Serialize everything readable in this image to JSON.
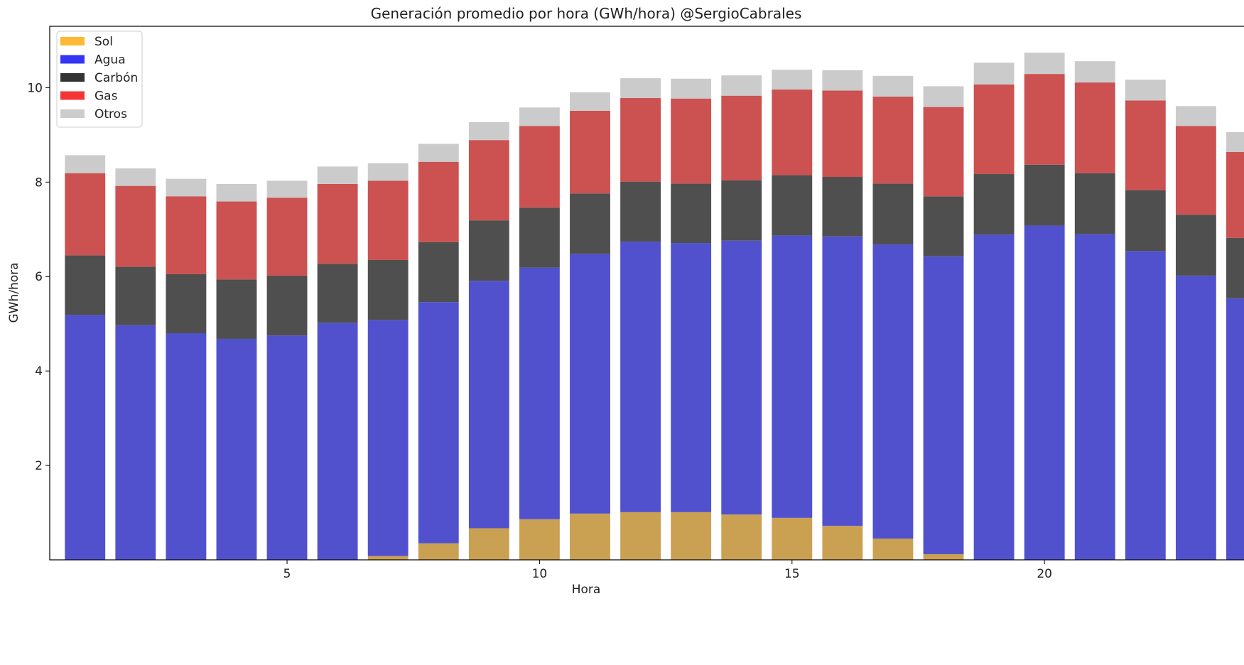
{
  "chart_data": {
    "type": "bar",
    "stacked": true,
    "title": "Generación promedio por hora (GWh/hora) @SergioCabrales",
    "xlabel": "Hora",
    "ylabel": "GWh/hora",
    "xlim": [
      0.3,
      24.5
    ],
    "ylim": [
      0,
      11.3
    ],
    "x": [
      1,
      2,
      3,
      4,
      5,
      6,
      7,
      8,
      9,
      10,
      11,
      12,
      13,
      14,
      15,
      16,
      17,
      18,
      19,
      20,
      21,
      22,
      23,
      24
    ],
    "x_ticks": [
      5,
      10,
      15,
      20
    ],
    "y_ticks": [
      2,
      4,
      6,
      8,
      10
    ],
    "grid": false,
    "legend_position": "top-left",
    "series": [
      {
        "name": "Sol",
        "legend_color": "#ffb833",
        "bar_color": "#caa052",
        "values": [
          0,
          0,
          0,
          0,
          0,
          0,
          0.08,
          0.35,
          0.67,
          0.86,
          0.98,
          1.01,
          1.01,
          0.96,
          0.89,
          0.72,
          0.45,
          0.12,
          0,
          0,
          0,
          0,
          0,
          0
        ]
      },
      {
        "name": "Agua",
        "legend_color": "#3535f5",
        "bar_color": "#5151cd",
        "values": [
          5.19,
          4.97,
          4.8,
          4.68,
          4.75,
          5.02,
          5.0,
          5.11,
          5.24,
          5.33,
          5.5,
          5.73,
          5.7,
          5.8,
          5.98,
          6.13,
          6.23,
          6.31,
          6.89,
          7.08,
          6.9,
          6.54,
          6.02,
          5.54
        ]
      },
      {
        "name": "Carbón",
        "legend_color": "#333333",
        "bar_color": "#4f4f4f",
        "values": [
          1.26,
          1.24,
          1.25,
          1.26,
          1.27,
          1.25,
          1.27,
          1.27,
          1.28,
          1.27,
          1.28,
          1.27,
          1.26,
          1.28,
          1.28,
          1.26,
          1.29,
          1.27,
          1.28,
          1.29,
          1.29,
          1.29,
          1.29,
          1.28
        ]
      },
      {
        "name": "Gas",
        "legend_color": "#f53535",
        "bar_color": "#cc5151",
        "values": [
          1.74,
          1.71,
          1.65,
          1.65,
          1.65,
          1.69,
          1.68,
          1.7,
          1.7,
          1.73,
          1.75,
          1.77,
          1.8,
          1.79,
          1.81,
          1.83,
          1.84,
          1.89,
          1.9,
          1.92,
          1.92,
          1.9,
          1.88,
          1.82
        ]
      },
      {
        "name": "Otros",
        "legend_color": "#cccccc",
        "bar_color": "#cbcbcb",
        "values": [
          0.38,
          0.37,
          0.37,
          0.37,
          0.36,
          0.37,
          0.37,
          0.38,
          0.38,
          0.39,
          0.39,
          0.42,
          0.42,
          0.43,
          0.42,
          0.43,
          0.44,
          0.44,
          0.46,
          0.45,
          0.45,
          0.44,
          0.42,
          0.42
        ]
      }
    ]
  }
}
